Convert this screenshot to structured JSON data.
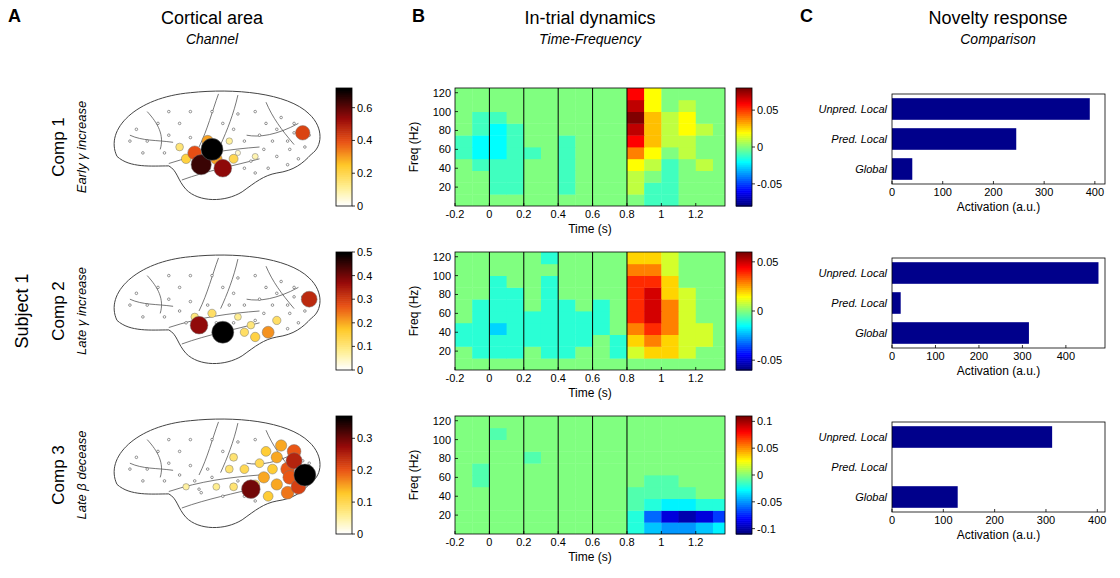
{
  "headers": [
    {
      "letter": "A",
      "title": "Cortical area",
      "subtitle": "Channel"
    },
    {
      "letter": "B",
      "title": "In-trial dynamics",
      "subtitle": "Time-Frequency"
    },
    {
      "letter": "C",
      "title": "Novelty response",
      "subtitle": "Comparison"
    }
  ],
  "row_label": "Subject 1",
  "components": [
    {
      "name": "Comp 1",
      "description": "Early γ increase"
    },
    {
      "name": "Comp 2",
      "description": "Late γ increase"
    },
    {
      "name": "Comp 3",
      "description": "Late β decease"
    }
  ],
  "chart_data": [
    {
      "type": "scatter",
      "tick_labels": false,
      "xlim": [
        0,
        100
      ],
      "ylim": [
        100,
        0
      ],
      "x": [
        50,
        45,
        55,
        42,
        48,
        38,
        60,
        92,
        70,
        35,
        44,
        95,
        76,
        70,
        80,
        62,
        93,
        68,
        88,
        85,
        80,
        75,
        82,
        88,
        78,
        72,
        65,
        60,
        55,
        52,
        85,
        90,
        30,
        25,
        20,
        15,
        35,
        40,
        30,
        50,
        62,
        70,
        58,
        40,
        65,
        74,
        86,
        28,
        18,
        12
      ],
      "y": [
        52,
        65,
        68,
        55,
        45,
        60,
        60,
        38,
        58,
        50,
        62,
        40,
        68,
        72,
        58,
        55,
        50,
        62,
        38,
        45,
        35,
        30,
        25,
        30,
        45,
        40,
        45,
        35,
        30,
        60,
        65,
        60,
        40,
        30,
        45,
        35,
        30,
        20,
        20,
        20,
        22,
        20,
        45,
        42,
        68,
        52,
        52,
        55,
        55,
        45
      ],
      "values": [
        0.72,
        0.65,
        0.55,
        0.4,
        0.3,
        0.22,
        0.2,
        0.42,
        0.08,
        0.15,
        0.25,
        0,
        0,
        0,
        0,
        0.05,
        0,
        0,
        0,
        0,
        0,
        0,
        0,
        0,
        0,
        0,
        0,
        0,
        0,
        0.3,
        0,
        0,
        0,
        0,
        0,
        0,
        0,
        0,
        0,
        0,
        0,
        0,
        0.1,
        0,
        0,
        0,
        0,
        0,
        0,
        0
      ],
      "colorbar_range": [
        0,
        0.72
      ],
      "colorbar_ticks": [
        0,
        0.2,
        0.4,
        0.6
      ]
    },
    {
      "type": "heatmap",
      "xlabel": "Time (s)",
      "ylabel": "Freq (Hz)",
      "xlim": [
        -0.2,
        1.37
      ],
      "xticks": [
        -0.2,
        0,
        0.2,
        0.4,
        0.6,
        0.8,
        1,
        1.2
      ],
      "ylim": [
        0,
        125
      ],
      "yticks": [
        20,
        40,
        60,
        80,
        100,
        120
      ],
      "event_lines": [
        0,
        0.2,
        0.4,
        0.6,
        0.8
      ],
      "time_bins": [
        -0.2,
        -0.1,
        0,
        0.1,
        0.2,
        0.3,
        0.4,
        0.5,
        0.6,
        0.7,
        0.8,
        0.9,
        1,
        1.1,
        1.2,
        1.3,
        1.4
      ],
      "freq_bins": [
        0,
        12.5,
        25,
        37.5,
        50,
        62.5,
        75,
        87.5,
        100,
        112.5,
        125
      ],
      "cells": [
        [
          0,
          0,
          0,
          0,
          0,
          0,
          0,
          0,
          0,
          0,
          0,
          -0.01,
          -0.01,
          0,
          0,
          0
        ],
        [
          0,
          0,
          -0.01,
          -0.01,
          0,
          0,
          -0.01,
          0,
          0,
          0,
          0.01,
          -0.01,
          -0.01,
          0,
          0,
          0
        ],
        [
          0,
          0,
          -0.01,
          -0.01,
          0,
          0,
          -0.01,
          0,
          0,
          0,
          0.01,
          0,
          -0.01,
          0,
          0,
          0
        ],
        [
          0,
          -0.01,
          -0.01,
          -0.01,
          0,
          0,
          -0.01,
          0,
          0,
          0,
          0.02,
          0.01,
          -0.01,
          0,
          0.01,
          0
        ],
        [
          -0.01,
          -0.02,
          -0.02,
          -0.01,
          -0.01,
          0,
          -0.01,
          0,
          0,
          0,
          0.04,
          0.02,
          0,
          0.01,
          0,
          0
        ],
        [
          -0.01,
          -0.02,
          -0.02,
          -0.01,
          0,
          0,
          -0.01,
          0,
          0,
          0,
          0.06,
          0.03,
          0.01,
          0.01,
          0,
          0
        ],
        [
          0,
          -0.01,
          -0.02,
          -0.01,
          0,
          0,
          0,
          0,
          0,
          0,
          0.07,
          0.03,
          0.01,
          0.02,
          0.01,
          0
        ],
        [
          0,
          -0.01,
          -0.01,
          0,
          0,
          0,
          0,
          0,
          0,
          0,
          0.08,
          0.03,
          0.01,
          0.02,
          0,
          0
        ],
        [
          0,
          0,
          0,
          0,
          0,
          0,
          0,
          0,
          0,
          0,
          0.07,
          0.02,
          0,
          0.01,
          0,
          0
        ],
        [
          0,
          0,
          0,
          0,
          0,
          0,
          0,
          0,
          0,
          0,
          0.06,
          0.02,
          0,
          0,
          0,
          0
        ]
      ],
      "colorbar_range": [
        -0.08,
        0.08
      ],
      "colorbar_ticks": [
        -0.05,
        0,
        0.05
      ]
    },
    {
      "type": "bar",
      "orientation": "horizontal",
      "categories": [
        "Unpred. Local",
        "Pred. Local",
        "Global"
      ],
      "values": [
        390,
        245,
        40
      ],
      "color": "#00008b",
      "xlabel": "Activation (a.u.)",
      "xlim": [
        0,
        420
      ],
      "xticks": [
        0,
        100,
        200,
        300,
        400
      ]
    },
    {
      "type": "scatter",
      "tick_labels": false,
      "xlim": [
        0,
        100
      ],
      "ylim": [
        100,
        0
      ],
      "x": [
        50,
        45,
        55,
        42,
        48,
        38,
        60,
        92,
        70,
        35,
        44,
        95,
        76,
        70,
        80,
        62,
        93,
        68,
        88,
        85,
        80,
        75,
        82,
        88,
        78,
        72,
        65,
        60,
        55,
        52,
        85,
        90,
        30,
        25,
        20,
        15,
        35,
        40,
        30,
        50,
        62,
        70,
        58,
        40,
        65,
        74,
        86,
        28,
        18,
        12
      ],
      "y": [
        52,
        65,
        68,
        55,
        45,
        60,
        60,
        38,
        58,
        50,
        62,
        40,
        68,
        72,
        58,
        55,
        50,
        62,
        38,
        45,
        35,
        30,
        25,
        30,
        45,
        40,
        45,
        35,
        30,
        60,
        65,
        60,
        40,
        30,
        45,
        35,
        30,
        20,
        20,
        20,
        22,
        20,
        45,
        42,
        68,
        52,
        52,
        55,
        55,
        45
      ],
      "values": [
        0.12,
        0.15,
        0.5,
        0.1,
        0,
        0,
        0,
        0,
        0,
        0,
        0.38,
        0.33,
        0.22,
        0.15,
        0.12,
        0.08,
        0,
        0.1,
        0,
        0,
        0,
        0,
        0,
        0,
        0,
        0,
        0,
        0,
        0,
        0,
        0,
        0,
        0,
        0,
        0,
        0,
        0,
        0,
        0,
        0,
        0,
        0,
        0,
        0,
        0.12,
        0,
        0,
        0,
        0,
        0
      ],
      "colorbar_range": [
        0,
        0.5
      ],
      "colorbar_ticks": [
        0,
        0.1,
        0.2,
        0.3,
        0.4,
        0.5
      ]
    },
    {
      "type": "heatmap",
      "xlabel": "Time (s)",
      "ylabel": "Freq (Hz)",
      "xlim": [
        -0.2,
        1.37
      ],
      "xticks": [
        -0.2,
        0,
        0.2,
        0.4,
        0.6,
        0.8,
        1,
        1.2
      ],
      "ylim": [
        0,
        125
      ],
      "yticks": [
        20,
        40,
        60,
        80,
        100,
        120
      ],
      "event_lines": [
        0,
        0.2,
        0.4,
        0.6,
        0.8
      ],
      "time_bins": [
        -0.2,
        -0.1,
        0,
        0.1,
        0.2,
        0.3,
        0.4,
        0.5,
        0.6,
        0.7,
        0.8,
        0.9,
        1,
        1.1,
        1.2,
        1.3,
        1.4
      ],
      "freq_bins": [
        0,
        12.5,
        25,
        37.5,
        50,
        62.5,
        75,
        87.5,
        100,
        112.5,
        125
      ],
      "cells": [
        [
          0,
          0,
          0,
          0,
          0,
          0,
          0,
          0,
          0,
          0,
          0,
          0,
          0,
          0,
          0,
          0
        ],
        [
          0,
          -0.01,
          -0.01,
          -0.01,
          0,
          -0.01,
          -0.01,
          0,
          0,
          -0.01,
          0.01,
          0.02,
          0.02,
          0.01,
          0,
          0
        ],
        [
          -0.01,
          -0.01,
          -0.01,
          -0.01,
          -0.01,
          -0.01,
          -0.01,
          -0.01,
          0,
          -0.01,
          0.02,
          0.03,
          0.02,
          0.01,
          0.01,
          0
        ],
        [
          -0.01,
          -0.01,
          -0.02,
          -0.01,
          -0.01,
          -0.01,
          -0.01,
          -0.01,
          -0.01,
          0,
          0.03,
          0.04,
          0.03,
          0.01,
          0.01,
          0
        ],
        [
          0,
          -0.01,
          -0.01,
          -0.01,
          -0.01,
          -0.01,
          -0.01,
          -0.01,
          -0.01,
          0,
          0.04,
          0.05,
          0.03,
          0.01,
          0,
          0
        ],
        [
          0,
          -0.01,
          -0.01,
          -0.01,
          0,
          -0.01,
          -0.01,
          0,
          -0.01,
          0,
          0.04,
          0.05,
          0.03,
          0.01,
          0,
          0
        ],
        [
          0,
          0,
          -0.01,
          -0.01,
          0,
          -0.01,
          0,
          0,
          0,
          0,
          0.04,
          0.05,
          0.02,
          0.01,
          0,
          0
        ],
        [
          0,
          0,
          -0.01,
          0,
          0,
          -0.01,
          0,
          0,
          0,
          0,
          0.04,
          0.04,
          0.02,
          0,
          0,
          0
        ],
        [
          0,
          0,
          0,
          0,
          0,
          0,
          0,
          0,
          0,
          0,
          0.03,
          0.03,
          0.01,
          0,
          0,
          0
        ],
        [
          0,
          0,
          0,
          0,
          0,
          -0.01,
          0,
          0,
          0,
          0,
          0.02,
          0.02,
          0.01,
          0,
          0,
          0
        ]
      ],
      "colorbar_range": [
        -0.06,
        0.06
      ],
      "colorbar_ticks": [
        -0.05,
        0,
        0.05
      ]
    },
    {
      "type": "bar",
      "orientation": "horizontal",
      "categories": [
        "Unpred. Local",
        "Pred. Local",
        "Global"
      ],
      "values": [
        475,
        20,
        315
      ],
      "color": "#00008b",
      "xlabel": "Activation (a.u.)",
      "xlim": [
        0,
        490
      ],
      "xticks": [
        0,
        100,
        200,
        300,
        400
      ]
    },
    {
      "type": "scatter",
      "tick_labels": false,
      "xlim": [
        0,
        100
      ],
      "ylim": [
        100,
        0
      ],
      "x": [
        50,
        45,
        55,
        42,
        48,
        38,
        60,
        92,
        70,
        35,
        44,
        95,
        76,
        70,
        80,
        62,
        93,
        68,
        88,
        85,
        80,
        75,
        82,
        88,
        78,
        72,
        65,
        60,
        55,
        52,
        85,
        90,
        30,
        25,
        20,
        15,
        35,
        40,
        30,
        50,
        62,
        70,
        58,
        40,
        65,
        74,
        86,
        28,
        18,
        12
      ],
      "y": [
        52,
        65,
        68,
        55,
        45,
        60,
        60,
        38,
        58,
        50,
        62,
        40,
        68,
        72,
        58,
        55,
        50,
        62,
        38,
        45,
        35,
        30,
        25,
        30,
        45,
        40,
        45,
        35,
        30,
        60,
        65,
        60,
        40,
        30,
        45,
        35,
        30,
        20,
        20,
        20,
        22,
        20,
        45,
        42,
        68,
        52,
        52,
        55,
        55,
        45
      ],
      "values": [
        0,
        0,
        0,
        0,
        0,
        0.05,
        0.08,
        0,
        0.1,
        0,
        0,
        0,
        0.12,
        0,
        0.15,
        0,
        0.37,
        0.3,
        0.25,
        0.2,
        0.15,
        0.12,
        0.15,
        0.2,
        0.12,
        0.1,
        0.1,
        0.08,
        0,
        0.06,
        0.18,
        0.22,
        0,
        0,
        0,
        0,
        0,
        0,
        0,
        0,
        0,
        0,
        0.08,
        0,
        0,
        0.15,
        0.2,
        0,
        0,
        0
      ],
      "colorbar_range": [
        0,
        0.37
      ],
      "colorbar_ticks": [
        0,
        0.1,
        0.2,
        0.3
      ]
    },
    {
      "type": "heatmap",
      "xlabel": "Time (s)",
      "ylabel": "Freq (Hz)",
      "xlim": [
        -0.2,
        1.37
      ],
      "xticks": [
        -0.2,
        0,
        0.2,
        0.4,
        0.6,
        0.8,
        1,
        1.2
      ],
      "ylim": [
        0,
        125
      ],
      "yticks": [
        20,
        40,
        60,
        80,
        100,
        120
      ],
      "event_lines": [
        0,
        0.2,
        0.4,
        0.6,
        0.8
      ],
      "time_bins": [
        -0.2,
        -0.1,
        0,
        0.1,
        0.2,
        0.3,
        0.4,
        0.5,
        0.6,
        0.7,
        0.8,
        0.9,
        1,
        1.1,
        1.2,
        1.3,
        1.4
      ],
      "freq_bins": [
        0,
        12.5,
        25,
        37.5,
        50,
        62.5,
        75,
        87.5,
        100,
        112.5,
        125
      ],
      "cells": [
        [
          0,
          0,
          0,
          0,
          0,
          0,
          0,
          0,
          0,
          0,
          -0.02,
          -0.04,
          -0.05,
          -0.05,
          -0.04,
          -0.03
        ],
        [
          0,
          0,
          0,
          0,
          0,
          0,
          0,
          0,
          0,
          0,
          -0.02,
          -0.06,
          -0.09,
          -0.1,
          -0.09,
          -0.07
        ],
        [
          0,
          0,
          0,
          0,
          0,
          0,
          0,
          0,
          0,
          0,
          -0.01,
          -0.02,
          -0.03,
          -0.03,
          -0.02,
          -0.02
        ],
        [
          0,
          0,
          0,
          0,
          0,
          0,
          0,
          0,
          0,
          0,
          -0.01,
          -0.01,
          -0.01,
          -0.01,
          0,
          0
        ],
        [
          0,
          -0.01,
          0,
          0,
          0,
          0,
          0,
          0,
          0,
          0,
          0,
          -0.01,
          -0.01,
          0,
          0,
          0
        ],
        [
          0,
          -0.01,
          0,
          0,
          0,
          0,
          0,
          0,
          0,
          0,
          0,
          0,
          0,
          0,
          0,
          0
        ],
        [
          0,
          0,
          0,
          0,
          -0.01,
          0,
          0,
          0,
          0,
          0,
          0,
          0,
          0,
          0,
          0,
          0
        ],
        [
          0,
          0,
          0,
          0,
          0,
          0,
          0,
          0,
          0,
          0,
          0,
          0,
          0,
          0,
          0,
          0
        ],
        [
          0,
          0,
          -0.01,
          0,
          0,
          0,
          0,
          0,
          0,
          0,
          0,
          0,
          0,
          0,
          0,
          0
        ],
        [
          0,
          0,
          0,
          0,
          0,
          0,
          0,
          0,
          0,
          0,
          0,
          0,
          0,
          0,
          0,
          0
        ]
      ],
      "colorbar_range": [
        -0.11,
        0.11
      ],
      "colorbar_ticks": [
        -0.1,
        -0.05,
        0,
        0.05,
        0.1
      ]
    },
    {
      "type": "bar",
      "orientation": "horizontal",
      "categories": [
        "Unpred. Local",
        "Pred. Local",
        "Global"
      ],
      "values": [
        312,
        0,
        128
      ],
      "color": "#00008b",
      "xlabel": "Activation (a.u.)",
      "xlim": [
        0,
        415
      ],
      "xticks": [
        0,
        100,
        200,
        300,
        400
      ]
    }
  ]
}
